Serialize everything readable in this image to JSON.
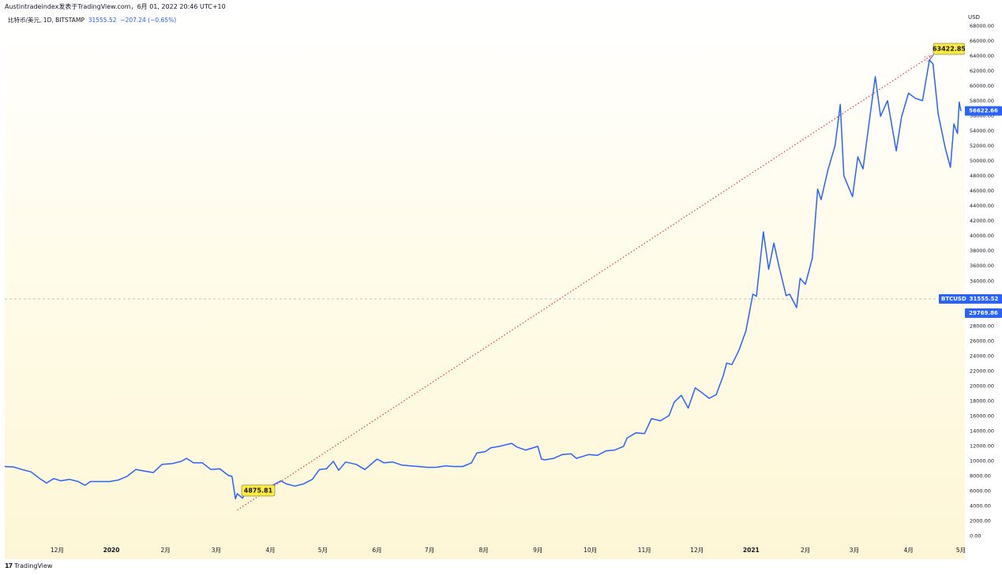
{
  "header": {
    "title": "Austintradeindex发表于TradingView.com，6月 01, 2022 20:46 UTC+10"
  },
  "legend": {
    "symbol": "比特币/美元, 1D, BITSTAMP",
    "last": "31555.52",
    "change": "−207.24 (−0.65%)"
  },
  "axis": {
    "currency": "USD"
  },
  "badges": {
    "high": "63422.85",
    "low": "4875.81",
    "current": "56622.66",
    "symbol_tag": "BTCUSD",
    "symbol_price": "31555.52",
    "reference": "29769.86"
  },
  "footer": {
    "brand": "TradingView",
    "mark": "17"
  },
  "colors": {
    "line": "#2962ff",
    "trend": "#e53935",
    "badge_yellow": "#ffeb3b",
    "badge_blue": "#2962ff"
  },
  "chart_data": {
    "type": "line",
    "title": "",
    "xlabel": "",
    "ylabel": "USD",
    "ylim": [
      0,
      69000
    ],
    "xlim": [
      "2019-11-01",
      "2021-05-01"
    ],
    "grid": false,
    "x_ticks": [
      {
        "label": "12月",
        "date": "2019-12-01"
      },
      {
        "label": "2020",
        "date": "2020-01-01"
      },
      {
        "label": "2月",
        "date": "2020-02-01"
      },
      {
        "label": "3月",
        "date": "2020-03-01"
      },
      {
        "label": "4月",
        "date": "2020-04-01"
      },
      {
        "label": "5月",
        "date": "2020-05-01"
      },
      {
        "label": "6月",
        "date": "2020-06-01"
      },
      {
        "label": "7月",
        "date": "2020-07-01"
      },
      {
        "label": "8月",
        "date": "2020-08-01"
      },
      {
        "label": "9月",
        "date": "2020-09-01"
      },
      {
        "label": "10月",
        "date": "2020-10-01"
      },
      {
        "label": "11月",
        "date": "2020-11-01"
      },
      {
        "label": "12月",
        "date": "2020-12-01"
      },
      {
        "label": "2021",
        "date": "2021-01-01"
      },
      {
        "label": "2月",
        "date": "2021-02-01"
      },
      {
        "label": "3月",
        "date": "2021-03-01"
      },
      {
        "label": "4月",
        "date": "2021-04-01"
      },
      {
        "label": "5月",
        "date": "2021-05-01"
      }
    ],
    "y_ticks": [
      0,
      2000,
      4000,
      6000,
      8000,
      10000,
      12000,
      14000,
      16000,
      18000,
      20000,
      22000,
      24000,
      26000,
      28000,
      30000,
      32000,
      34000,
      36000,
      38000,
      40000,
      42000,
      44000,
      46000,
      48000,
      50000,
      52000,
      54000,
      56000,
      58000,
      60000,
      62000,
      64000,
      66000,
      68000
    ],
    "y_tick_labels": [
      "0.00",
      "2000.00",
      "4000.00",
      "6000.00",
      "8000.00",
      "10000.00",
      "12000.00",
      "14000.00",
      "16000.00",
      "18000.00",
      "20000.00",
      "22000.00",
      "24000.00",
      "26000.00",
      "28000.00",
      "30000.00",
      "32000.00",
      "34000.00",
      "36000.00",
      "38000.00",
      "40000.00",
      "42000.00",
      "44000.00",
      "46000.00",
      "48000.00",
      "50000.00",
      "52000.00",
      "54000.00",
      "56000.00",
      "58000.00",
      "60000.00",
      "62000.00",
      "64000.00",
      "66000.00",
      "68000.00"
    ],
    "series": [
      {
        "points": [
          [
            "2019-11-01",
            9200
          ],
          [
            "2019-11-06",
            9150
          ],
          [
            "2019-11-11",
            8800
          ],
          [
            "2019-11-16",
            8500
          ],
          [
            "2019-11-21",
            7600
          ],
          [
            "2019-11-25",
            7000
          ],
          [
            "2019-11-29",
            7600
          ],
          [
            "2019-12-03",
            7300
          ],
          [
            "2019-12-08",
            7500
          ],
          [
            "2019-12-13",
            7200
          ],
          [
            "2019-12-17",
            6700
          ],
          [
            "2019-12-20",
            7200
          ],
          [
            "2019-12-25",
            7200
          ],
          [
            "2019-12-31",
            7200
          ],
          [
            "2020-01-05",
            7400
          ],
          [
            "2020-01-10",
            7900
          ],
          [
            "2020-01-15",
            8800
          ],
          [
            "2020-01-20",
            8600
          ],
          [
            "2020-01-25",
            8400
          ],
          [
            "2020-01-30",
            9500
          ],
          [
            "2020-02-05",
            9600
          ],
          [
            "2020-02-10",
            9900
          ],
          [
            "2020-02-13",
            10300
          ],
          [
            "2020-02-17",
            9700
          ],
          [
            "2020-02-22",
            9700
          ],
          [
            "2020-02-27",
            8800
          ],
          [
            "2020-03-03",
            8900
          ],
          [
            "2020-03-08",
            8000
          ],
          [
            "2020-03-10",
            7900
          ],
          [
            "2020-03-12",
            4900
          ],
          [
            "2020-03-13",
            5600
          ],
          [
            "2020-03-16",
            5000
          ],
          [
            "2020-03-19",
            6200
          ],
          [
            "2020-03-25",
            6700
          ],
          [
            "2020-03-30",
            6400
          ],
          [
            "2020-04-03",
            6800
          ],
          [
            "2020-04-07",
            7300
          ],
          [
            "2020-04-10",
            6900
          ],
          [
            "2020-04-15",
            6600
          ],
          [
            "2020-04-20",
            6900
          ],
          [
            "2020-04-25",
            7500
          ],
          [
            "2020-04-29",
            8800
          ],
          [
            "2020-05-03",
            8900
          ],
          [
            "2020-05-07",
            9900
          ],
          [
            "2020-05-10",
            8700
          ],
          [
            "2020-05-14",
            9800
          ],
          [
            "2020-05-20",
            9500
          ],
          [
            "2020-05-25",
            8800
          ],
          [
            "2020-06-01",
            10200
          ],
          [
            "2020-06-05",
            9700
          ],
          [
            "2020-06-10",
            9800
          ],
          [
            "2020-06-15",
            9400
          ],
          [
            "2020-06-20",
            9300
          ],
          [
            "2020-06-25",
            9200
          ],
          [
            "2020-06-30",
            9100
          ],
          [
            "2020-07-05",
            9100
          ],
          [
            "2020-07-10",
            9300
          ],
          [
            "2020-07-15",
            9200
          ],
          [
            "2020-07-20",
            9200
          ],
          [
            "2020-07-25",
            9700
          ],
          [
            "2020-07-28",
            11000
          ],
          [
            "2020-08-02",
            11200
          ],
          [
            "2020-08-05",
            11700
          ],
          [
            "2020-08-10",
            11900
          ],
          [
            "2020-08-17",
            12300
          ],
          [
            "2020-08-20",
            11800
          ],
          [
            "2020-08-25",
            11400
          ],
          [
            "2020-09-01",
            11900
          ],
          [
            "2020-09-03",
            10200
          ],
          [
            "2020-09-05",
            10100
          ],
          [
            "2020-09-10",
            10300
          ],
          [
            "2020-09-15",
            10800
          ],
          [
            "2020-09-20",
            10900
          ],
          [
            "2020-09-23",
            10300
          ],
          [
            "2020-09-30",
            10800
          ],
          [
            "2020-10-05",
            10700
          ],
          [
            "2020-10-10",
            11300
          ],
          [
            "2020-10-15",
            11400
          ],
          [
            "2020-10-20",
            11900
          ],
          [
            "2020-10-22",
            13000
          ],
          [
            "2020-10-27",
            13700
          ],
          [
            "2020-11-01",
            13600
          ],
          [
            "2020-11-05",
            15600
          ],
          [
            "2020-11-10",
            15300
          ],
          [
            "2020-11-15",
            16000
          ],
          [
            "2020-11-18",
            17800
          ],
          [
            "2020-11-22",
            18700
          ],
          [
            "2020-11-26",
            17000
          ],
          [
            "2020-11-30",
            19700
          ],
          [
            "2020-12-03",
            19200
          ],
          [
            "2020-12-08",
            18300
          ],
          [
            "2020-12-12",
            18800
          ],
          [
            "2020-12-16",
            21300
          ],
          [
            "2020-12-18",
            23000
          ],
          [
            "2020-12-21",
            22800
          ],
          [
            "2020-12-25",
            24700
          ],
          [
            "2020-12-29",
            27300
          ],
          [
            "2021-01-02",
            32200
          ],
          [
            "2021-01-04",
            31900
          ],
          [
            "2021-01-08",
            40500
          ],
          [
            "2021-01-11",
            35500
          ],
          [
            "2021-01-14",
            39000
          ],
          [
            "2021-01-17",
            35800
          ],
          [
            "2021-01-21",
            32000
          ],
          [
            "2021-01-23",
            32200
          ],
          [
            "2021-01-27",
            30400
          ],
          [
            "2021-01-29",
            34300
          ],
          [
            "2021-02-01",
            33500
          ],
          [
            "2021-02-05",
            37000
          ],
          [
            "2021-02-08",
            46200
          ],
          [
            "2021-02-10",
            44800
          ],
          [
            "2021-02-14",
            48800
          ],
          [
            "2021-02-18",
            52000
          ],
          [
            "2021-02-21",
            57500
          ],
          [
            "2021-02-23",
            48000
          ],
          [
            "2021-02-26",
            46300
          ],
          [
            "2021-02-28",
            45200
          ],
          [
            "2021-03-03",
            50500
          ],
          [
            "2021-03-06",
            48900
          ],
          [
            "2021-03-10",
            56000
          ],
          [
            "2021-03-13",
            61200
          ],
          [
            "2021-03-16",
            55900
          ],
          [
            "2021-03-20",
            58000
          ],
          [
            "2021-03-25",
            51300
          ],
          [
            "2021-03-28",
            55800
          ],
          [
            "2021-04-01",
            59000
          ],
          [
            "2021-04-05",
            58300
          ],
          [
            "2021-04-09",
            58000
          ],
          [
            "2021-04-13",
            63400
          ],
          [
            "2021-04-15",
            62900
          ],
          [
            "2021-04-18",
            56200
          ],
          [
            "2021-04-22",
            51700
          ],
          [
            "2021-04-25",
            49100
          ],
          [
            "2021-04-27",
            54900
          ],
          [
            "2021-04-29",
            53600
          ],
          [
            "2021-04-30",
            57800
          ],
          [
            "2021-05-01",
            56622
          ]
        ]
      }
    ],
    "trendline": {
      "from": [
        "2020-03-13",
        4875.81
      ],
      "to": [
        "2021-04-14",
        64000
      ]
    },
    "reference_line": 31555.52
  }
}
